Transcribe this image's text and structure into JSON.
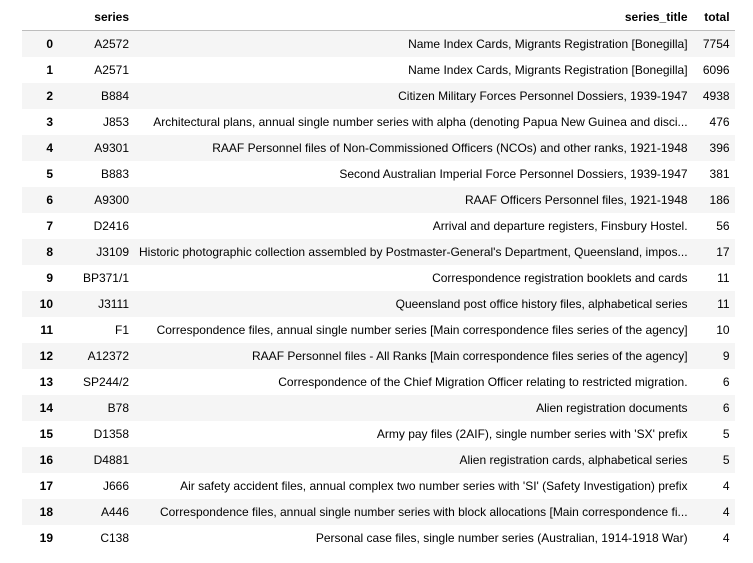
{
  "table": {
    "index_header": "",
    "columns": [
      "series",
      "series_title",
      "total"
    ],
    "rows": [
      {
        "index": "0",
        "series": "A2572",
        "series_title": "Name Index Cards, Migrants Registration [Bonegilla]",
        "total": "7754"
      },
      {
        "index": "1",
        "series": "A2571",
        "series_title": "Name Index Cards, Migrants Registration [Bonegilla]",
        "total": "6096"
      },
      {
        "index": "2",
        "series": "B884",
        "series_title": "Citizen Military Forces Personnel Dossiers, 1939-1947",
        "total": "4938"
      },
      {
        "index": "3",
        "series": "J853",
        "series_title": "Architectural plans, annual single number series with alpha (denoting Papua New Guinea and disci...",
        "total": "476"
      },
      {
        "index": "4",
        "series": "A9301",
        "series_title": "RAAF Personnel files of Non-Commissioned Officers (NCOs) and other ranks, 1921-1948",
        "total": "396"
      },
      {
        "index": "5",
        "series": "B883",
        "series_title": "Second Australian Imperial Force Personnel Dossiers, 1939-1947",
        "total": "381"
      },
      {
        "index": "6",
        "series": "A9300",
        "series_title": "RAAF Officers Personnel files, 1921-1948",
        "total": "186"
      },
      {
        "index": "7",
        "series": "D2416",
        "series_title": "Arrival and departure registers, Finsbury Hostel.",
        "total": "56"
      },
      {
        "index": "8",
        "series": "J3109",
        "series_title": "Historic photographic collection assembled by Postmaster-General's Department, Queensland, impos...",
        "total": "17"
      },
      {
        "index": "9",
        "series": "BP371/1",
        "series_title": "Correspondence registration booklets and cards",
        "total": "11"
      },
      {
        "index": "10",
        "series": "J3111",
        "series_title": "Queensland post office history files, alphabetical series",
        "total": "11"
      },
      {
        "index": "11",
        "series": "F1",
        "series_title": "Correspondence files, annual single number series [Main correspondence files series of the agency]",
        "total": "10"
      },
      {
        "index": "12",
        "series": "A12372",
        "series_title": "RAAF Personnel files - All Ranks [Main correspondence files series of the agency]",
        "total": "9"
      },
      {
        "index": "13",
        "series": "SP244/2",
        "series_title": "Correspondence of the Chief Migration Officer relating to restricted migration.",
        "total": "6"
      },
      {
        "index": "14",
        "series": "B78",
        "series_title": "Alien registration documents",
        "total": "6"
      },
      {
        "index": "15",
        "series": "D1358",
        "series_title": "Army pay files (2AIF), single number series with 'SX' prefix",
        "total": "5"
      },
      {
        "index": "16",
        "series": "D4881",
        "series_title": "Alien registration cards, alphabetical series",
        "total": "5"
      },
      {
        "index": "17",
        "series": "J666",
        "series_title": "Air safety accident files, annual complex two number series with 'SI' (Safety Investigation) prefix",
        "total": "4"
      },
      {
        "index": "18",
        "series": "A446",
        "series_title": "Correspondence files, annual single number series with block allocations [Main correspondence fi...",
        "total": "4"
      },
      {
        "index": "19",
        "series": "C138",
        "series_title": "Personal case files, single number series (Australian, 1914-1918 War)",
        "total": "4"
      }
    ]
  }
}
